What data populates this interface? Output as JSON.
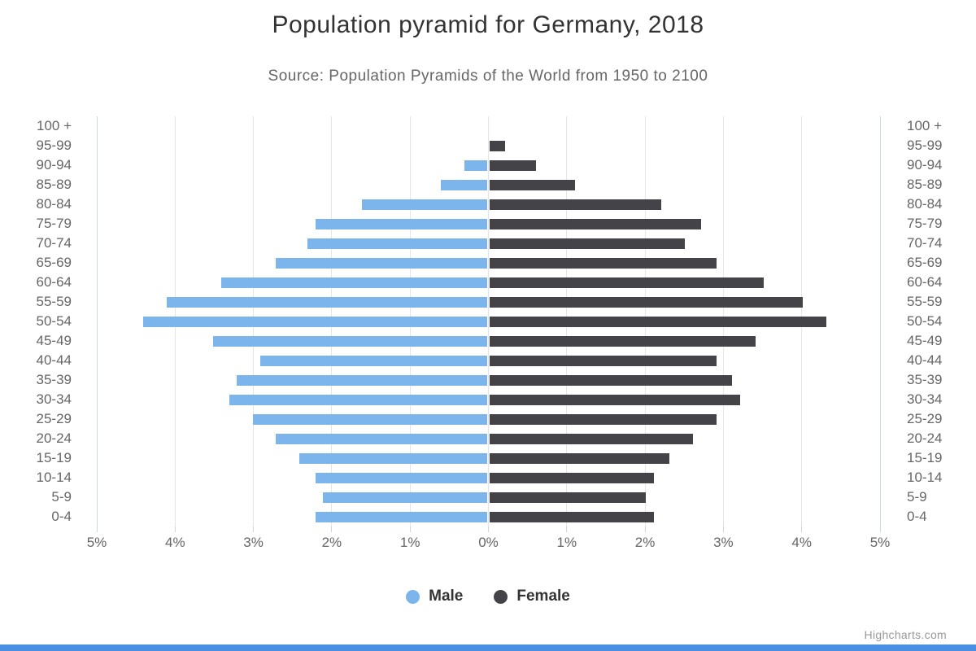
{
  "title": "Population pyramid for Germany, 2018",
  "subtitle": "Source: Population Pyramids of the World from 1950 to 2100",
  "credits_label": "Highcharts.com",
  "legend": {
    "male": "Male",
    "female": "Female"
  },
  "colors": {
    "male_bar": "#7cb5ec",
    "female_bar": "#434348",
    "gridline": "#e6e6e6",
    "axis_line": "#ccd6eb",
    "title_text": "#333333",
    "subtitle_text": "#666666",
    "axis_label_text": "#666666",
    "legend_text": "#333333",
    "credits_text": "#999999",
    "bottom_strip": "#4a90e2"
  },
  "chart_data": {
    "type": "bar",
    "subtype": "population-pyramid",
    "title": "Population pyramid for Germany, 2018",
    "subtitle": "Source: Population Pyramids of the World from 1950 to 2100",
    "categories_order": "top-to-bottom",
    "categories": [
      "100 +",
      "95-99",
      "90-94",
      "85-89",
      "80-84",
      "75-79",
      "70-74",
      "65-69",
      "60-64",
      "55-59",
      "50-54",
      "45-49",
      "40-44",
      "35-39",
      "30-34",
      "25-29",
      "20-24",
      "15-19",
      "10-14",
      "5-9",
      "0-4"
    ],
    "series": [
      {
        "name": "Male",
        "side": "left",
        "color": "#7cb5ec",
        "unit": "% of total population",
        "values": [
          0.0,
          0.0,
          0.3,
          0.6,
          1.6,
          2.2,
          2.3,
          2.7,
          3.4,
          4.1,
          4.4,
          3.5,
          2.9,
          3.2,
          3.3,
          3.0,
          2.7,
          2.4,
          2.2,
          2.1,
          2.2
        ]
      },
      {
        "name": "Female",
        "side": "right",
        "color": "#434348",
        "unit": "% of total population",
        "values": [
          0.0,
          0.2,
          0.6,
          1.1,
          2.2,
          2.7,
          2.5,
          2.9,
          3.5,
          4.0,
          4.3,
          3.4,
          2.9,
          3.1,
          3.2,
          2.9,
          2.6,
          2.3,
          2.1,
          2.0,
          2.1
        ]
      }
    ],
    "x_axis": {
      "min": -5,
      "max": 5,
      "tick_interval": 1,
      "unit": "%",
      "labels_show_absolute_value": true,
      "tick_labels": [
        "5%",
        "4%",
        "3%",
        "2%",
        "1%",
        "0%",
        "1%",
        "2%",
        "3%",
        "4%",
        "5%"
      ]
    },
    "grid": true,
    "legend_position": "bottom-center"
  }
}
